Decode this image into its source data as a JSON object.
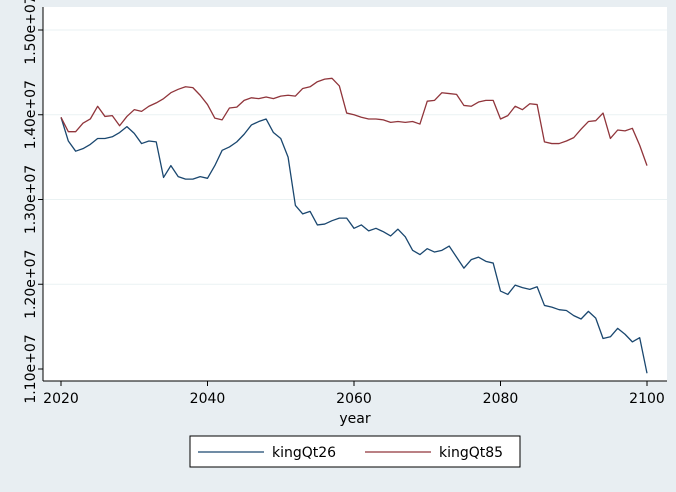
{
  "chart_data": {
    "type": "line",
    "title": "",
    "xlabel": "year",
    "ylabel": "",
    "xlim": [
      2020,
      2100
    ],
    "ylim": [
      11000000,
      15000000
    ],
    "x_ticks": [
      2020,
      2040,
      2060,
      2080,
      2100
    ],
    "x_tick_labels": [
      "2020",
      "2040",
      "2060",
      "2080",
      "2100"
    ],
    "y_ticks": [
      11000000,
      12000000,
      13000000,
      14000000,
      15000000
    ],
    "y_tick_labels": [
      "1.10e+07",
      "1.20e+07",
      "1.30e+07",
      "1.40e+07",
      "1.50e+07"
    ],
    "grid": "horizontal",
    "legend_position": "bottom",
    "x": [
      2020,
      2021,
      2022,
      2023,
      2024,
      2025,
      2026,
      2027,
      2028,
      2029,
      2030,
      2031,
      2032,
      2033,
      2034,
      2035,
      2036,
      2037,
      2038,
      2039,
      2040,
      2041,
      2042,
      2043,
      2044,
      2045,
      2046,
      2047,
      2048,
      2049,
      2050,
      2051,
      2052,
      2053,
      2054,
      2055,
      2056,
      2057,
      2058,
      2059,
      2060,
      2061,
      2062,
      2063,
      2064,
      2065,
      2066,
      2067,
      2068,
      2069,
      2070,
      2071,
      2072,
      2073,
      2074,
      2075,
      2076,
      2077,
      2078,
      2079,
      2080,
      2081,
      2082,
      2083,
      2084,
      2085,
      2086,
      2087,
      2088,
      2089,
      2090,
      2091,
      2092,
      2093,
      2094,
      2095,
      2096,
      2097,
      2098,
      2099,
      2100
    ],
    "series": [
      {
        "name": "kingQt26",
        "color": "#1a476f",
        "values": [
          13970000,
          13690000,
          13570000,
          13600000,
          13650000,
          13720000,
          13720000,
          13740000,
          13790000,
          13860000,
          13780000,
          13660000,
          13690000,
          13680000,
          13260000,
          13400000,
          13270000,
          13240000,
          13240000,
          13270000,
          13250000,
          13400000,
          13580000,
          13620000,
          13680000,
          13770000,
          13880000,
          13920000,
          13950000,
          13790000,
          13720000,
          13500000,
          12930000,
          12830000,
          12860000,
          12700000,
          12710000,
          12750000,
          12780000,
          12780000,
          12660000,
          12700000,
          12630000,
          12660000,
          12620000,
          12570000,
          12650000,
          12560000,
          12400000,
          12350000,
          12420000,
          12380000,
          12400000,
          12450000,
          12320000,
          12190000,
          12290000,
          12320000,
          12270000,
          12250000,
          11920000,
          11880000,
          11990000,
          11960000,
          11940000,
          11970000,
          11750000,
          11730000,
          11700000,
          11690000,
          11630000,
          11590000,
          11680000,
          11600000,
          11360000,
          11380000,
          11480000,
          11410000,
          11320000,
          11370000,
          10950000
        ]
      },
      {
        "name": "kingQt85",
        "color": "#90353b",
        "values": [
          13970000,
          13800000,
          13800000,
          13900000,
          13950000,
          14100000,
          13980000,
          13990000,
          13870000,
          13980000,
          14060000,
          14040000,
          14100000,
          14140000,
          14190000,
          14260000,
          14300000,
          14330000,
          14320000,
          14230000,
          14120000,
          13960000,
          13940000,
          14080000,
          14090000,
          14170000,
          14200000,
          14190000,
          14210000,
          14190000,
          14220000,
          14230000,
          14220000,
          14310000,
          14330000,
          14390000,
          14420000,
          14430000,
          14340000,
          14020000,
          14000000,
          13970000,
          13950000,
          13950000,
          13940000,
          13910000,
          13920000,
          13910000,
          13920000,
          13890000,
          14160000,
          14170000,
          14260000,
          14250000,
          14240000,
          14110000,
          14100000,
          14150000,
          14170000,
          14170000,
          13950000,
          13990000,
          14100000,
          14060000,
          14130000,
          14120000,
          13680000,
          13660000,
          13660000,
          13690000,
          13730000,
          13830000,
          13920000,
          13930000,
          14020000,
          13720000,
          13820000,
          13810000,
          13840000,
          13640000,
          13400000
        ]
      }
    ]
  }
}
